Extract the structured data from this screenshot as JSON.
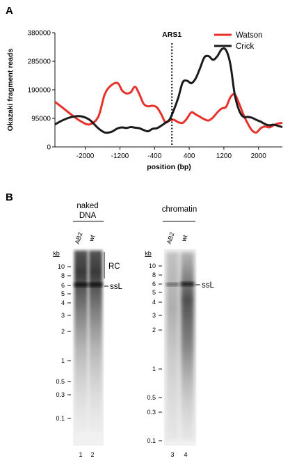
{
  "panel_a": {
    "label": "A",
    "chart_data": {
      "type": "line",
      "xlabel": "position (bp)",
      "ylabel": "Okazaki fragment reads",
      "xlim": [
        -2700,
        2550
      ],
      "ylim": [
        0,
        380000
      ],
      "x_ticks": [
        "-2000",
        "-1200",
        "-400",
        "400",
        "1200",
        "2000"
      ],
      "x_tick_values": [
        -2000,
        -1200,
        -400,
        400,
        1200,
        2000
      ],
      "y_ticks": [
        "0",
        "95000",
        "190000",
        "285000",
        "380000"
      ],
      "y_tick_values": [
        0,
        95000,
        190000,
        285000,
        380000
      ],
      "marker": {
        "label": "ARS1",
        "x": 0
      },
      "legend_position": "top-right",
      "series": [
        {
          "name": "Watson",
          "color": "#e8312a",
          "x": [
            -2700,
            -2500,
            -2300,
            -2100,
            -1900,
            -1700,
            -1550,
            -1400,
            -1250,
            -1150,
            -1050,
            -950,
            -850,
            -750,
            -650,
            -550,
            -450,
            -350,
            -250,
            -150,
            -50,
            50,
            150,
            250,
            350,
            450,
            550,
            650,
            750,
            850,
            950,
            1050,
            1150,
            1250,
            1350,
            1450,
            1550,
            1650,
            1750,
            1850,
            1950,
            2050,
            2150,
            2250,
            2350,
            2450,
            2550
          ],
          "y": [
            150000,
            128000,
            105000,
            85000,
            75000,
            100000,
            175000,
            205000,
            212000,
            188000,
            178000,
            182000,
            200000,
            175000,
            143000,
            135000,
            137000,
            132000,
            110000,
            82000,
            88000,
            90000,
            82000,
            80000,
            95000,
            115000,
            108000,
            100000,
            92000,
            88000,
            98000,
            115000,
            128000,
            133000,
            165000,
            175000,
            145000,
            108000,
            78000,
            55000,
            48000,
            62000,
            68000,
            65000,
            72000,
            78000,
            80000
          ]
        },
        {
          "name": "Crick",
          "color": "#1a1a1a",
          "x": [
            -2700,
            -2500,
            -2300,
            -2100,
            -1900,
            -1700,
            -1550,
            -1400,
            -1250,
            -1150,
            -1050,
            -950,
            -850,
            -750,
            -650,
            -550,
            -450,
            -350,
            -250,
            -150,
            -50,
            50,
            150,
            250,
            350,
            450,
            550,
            650,
            750,
            850,
            950,
            1050,
            1150,
            1250,
            1350,
            1450,
            1550,
            1650,
            1750,
            1850,
            1950,
            2050,
            2150,
            2250,
            2350,
            2450,
            2550
          ],
          "y": [
            75000,
            90000,
            100000,
            102000,
            90000,
            62000,
            48000,
            50000,
            62000,
            65000,
            63000,
            66000,
            64000,
            62000,
            56000,
            52000,
            60000,
            62000,
            70000,
            80000,
            92000,
            125000,
            165000,
            215000,
            220000,
            212000,
            228000,
            262000,
            298000,
            302000,
            290000,
            302000,
            325000,
            322000,
            275000,
            175000,
            122000,
            100000,
            100000,
            97000,
            90000,
            84000,
            76000,
            72000,
            74000,
            70000,
            66000
          ]
        }
      ]
    }
  },
  "panel_b": {
    "label": "B",
    "gel_naked": {
      "title_lines": [
        "naked",
        "DNA"
      ],
      "lanes": [
        "AB2",
        "wt"
      ],
      "lane_numbers": [
        "1",
        "2"
      ],
      "kb_label": "kb",
      "markers": [
        "10",
        "8",
        "6",
        "5",
        "4",
        "3",
        "2",
        "1",
        "0.5",
        "0.3",
        "0.1"
      ],
      "annotations": {
        "rc": "RC",
        "ssl": "ssL"
      }
    },
    "gel_chromatin": {
      "title": "chromatin",
      "lanes": [
        "AB2",
        "wt"
      ],
      "lane_numbers": [
        "3",
        "4"
      ],
      "kb_label": "kb",
      "markers": [
        "10",
        "8",
        "6",
        "5",
        "4",
        "3",
        "2",
        "1",
        "0.5",
        "0.3",
        "0.1"
      ],
      "annotations": {
        "ssl": "ssL"
      }
    }
  }
}
